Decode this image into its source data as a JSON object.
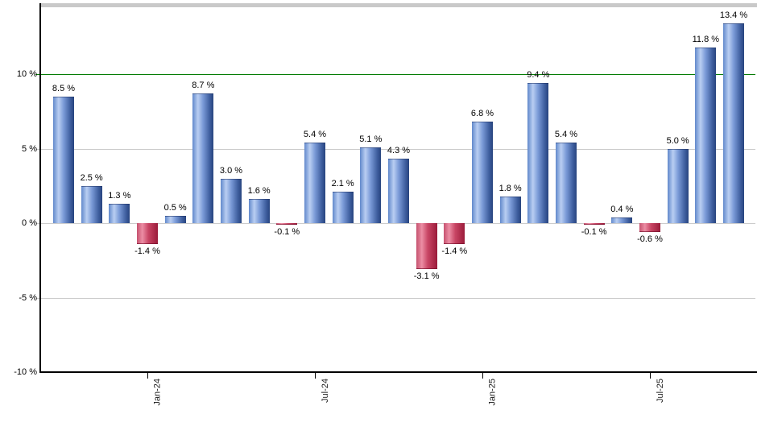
{
  "chart_data": {
    "type": "bar",
    "title": "",
    "xlabel": "",
    "ylabel": "",
    "unit": "%",
    "values": [
      8.5,
      2.5,
      1.3,
      -1.4,
      0.5,
      8.7,
      3.0,
      1.6,
      -0.1,
      5.4,
      2.1,
      5.1,
      4.3,
      -3.1,
      -1.4,
      6.8,
      1.8,
      9.4,
      5.4,
      -0.1,
      0.4,
      -0.6,
      5.0,
      11.8,
      13.4
    ],
    "bar_labels": [
      "8.5 %",
      "2.5 %",
      "1.3 %",
      "-1.4 %",
      "0.5 %",
      "8.7 %",
      "3.0 %",
      "1.6 %",
      "-0.1 %",
      "5.4 %",
      "2.1 %",
      "5.1 %",
      "4.3 %",
      "-3.1 %",
      "-1.4 %",
      "6.8 %",
      "1.8 %",
      "9.4 %",
      "5.4 %",
      "-0.1 %",
      "0.4 %",
      "-0.6 %",
      "5.0 %",
      "11.8 %",
      "13.4 %"
    ],
    "y_ticks": [
      {
        "value": 10,
        "label": "10 %"
      },
      {
        "value": 5,
        "label": "5 %"
      },
      {
        "value": 0,
        "label": "0 %"
      },
      {
        "value": -5,
        "label": "-5 %"
      },
      {
        "value": -10,
        "label": "-10 %"
      }
    ],
    "x_ticks": [
      {
        "bar_index": 3,
        "label": "Jan-24"
      },
      {
        "bar_index": 9,
        "label": "Jul-24"
      },
      {
        "bar_index": 15,
        "label": "Jan-25"
      },
      {
        "bar_index": 21,
        "label": "Jul-25"
      }
    ],
    "ylim": [
      -10,
      14.5
    ],
    "grid": true,
    "legend_position": "none",
    "reference_line": {
      "value": 10
    },
    "colors": {
      "positive_bar_gradient": [
        "#6289cb",
        "#b9cef2",
        "#7b9bd8",
        "#3f5f9f",
        "#27447f"
      ],
      "negative_bar_gradient": [
        "#c5526f",
        "#ec8da4",
        "#c84564",
        "#9a1b3a"
      ],
      "reference_line": "#067d06",
      "gridline": "#cccccc",
      "axis": "#000000",
      "value_text": "#000000",
      "tick_text": "#222222",
      "top_border": "#c9c9c9"
    }
  }
}
